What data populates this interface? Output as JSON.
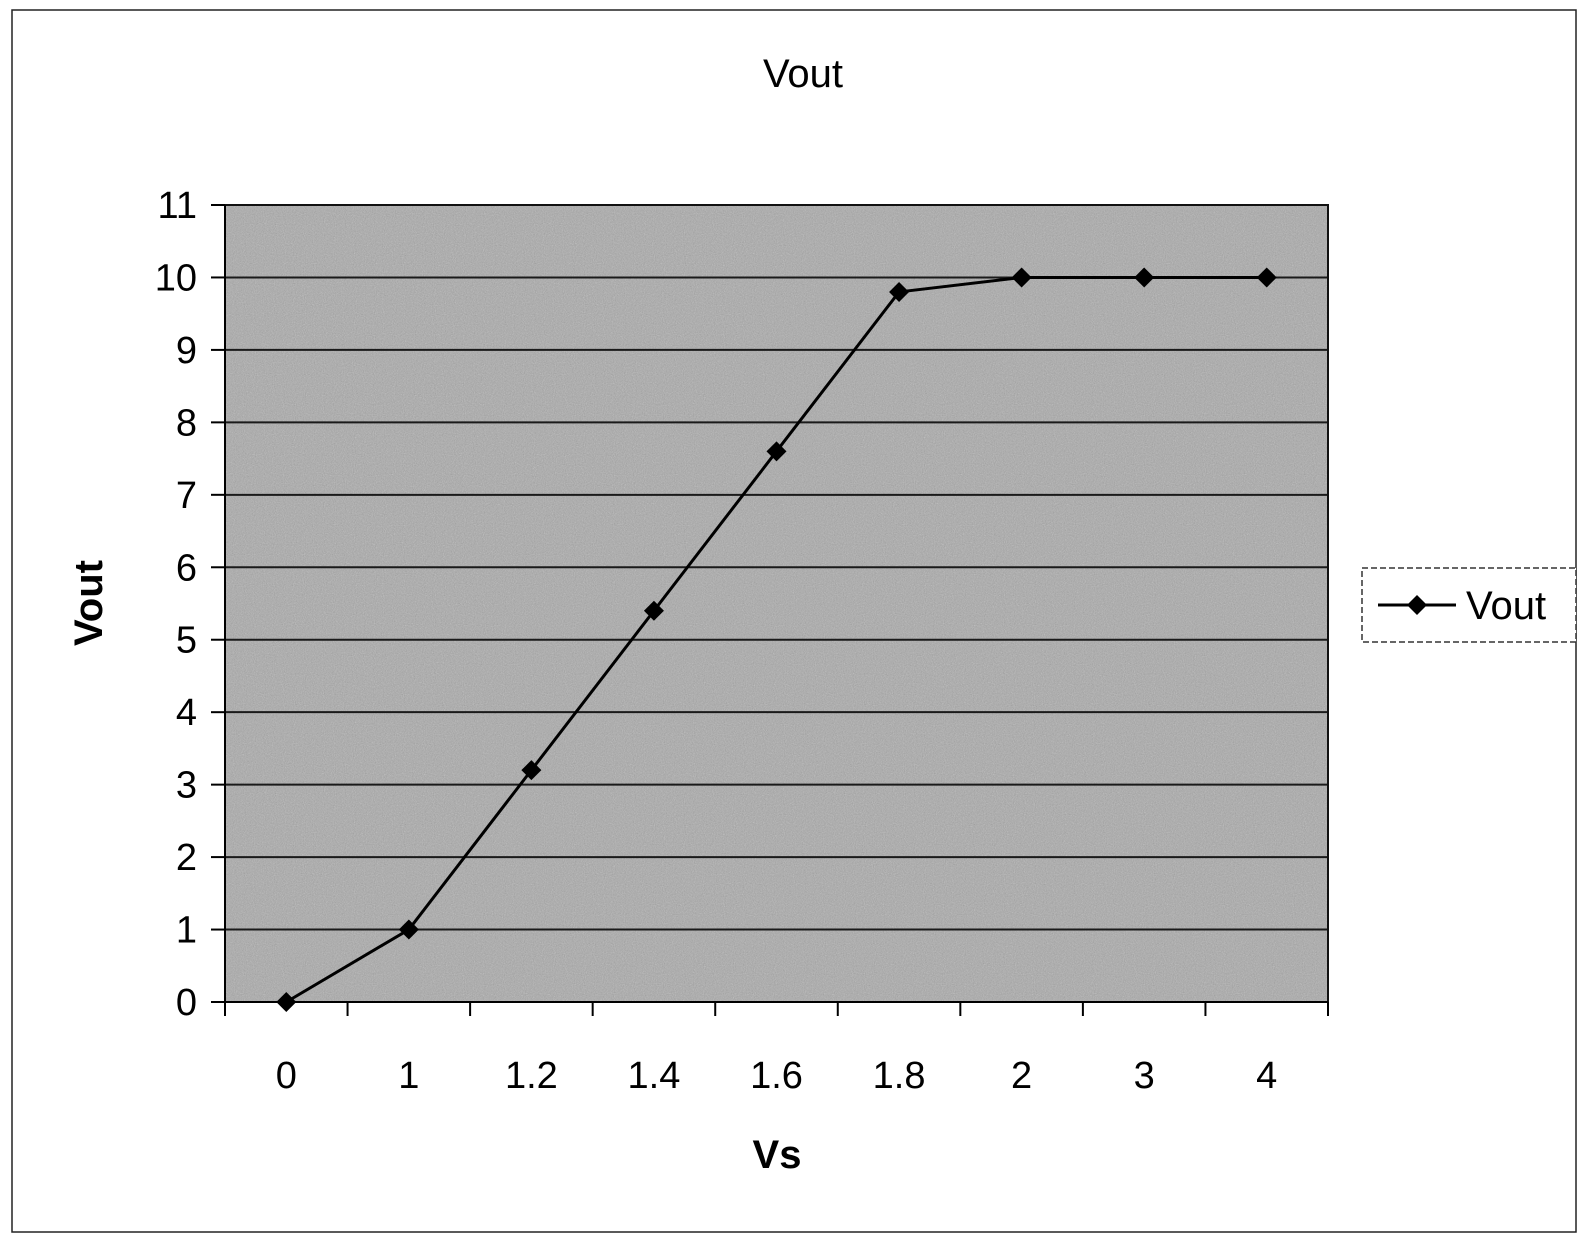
{
  "chart_data": {
    "type": "line",
    "title": "Vout",
    "xlabel": "Vs",
    "ylabel": "Vout",
    "categories": [
      "0",
      "1",
      "1.2",
      "1.4",
      "1.6",
      "1.8",
      "2",
      "3",
      "4"
    ],
    "series": [
      {
        "name": "Vout",
        "values": [
          0,
          1,
          3.2,
          5.4,
          7.6,
          9.8,
          10,
          10,
          10
        ]
      }
    ],
    "ylim": [
      0,
      11
    ],
    "yticks": [
      0,
      1,
      2,
      3,
      4,
      5,
      6,
      7,
      8,
      9,
      10,
      11
    ],
    "grid": "horizontal",
    "legend_position": "right",
    "colors": {
      "line": "#000000",
      "marker": "#000000",
      "plot_background": "#a9a9a9",
      "gridline": "#1a1a1a"
    }
  }
}
